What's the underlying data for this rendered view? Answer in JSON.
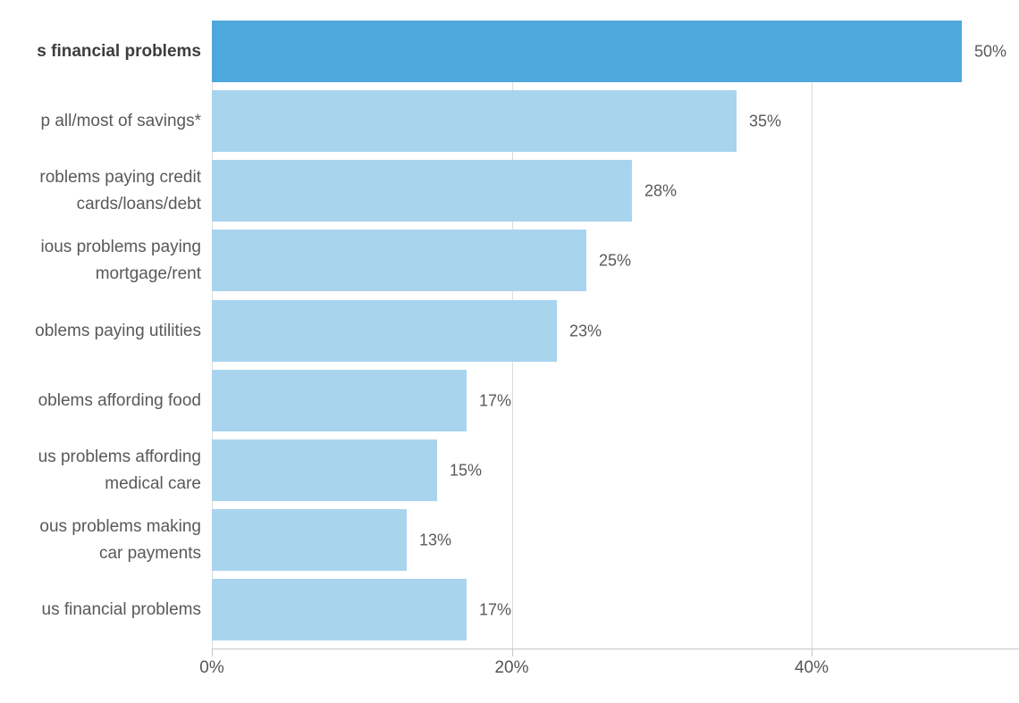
{
  "chart_data": {
    "type": "bar",
    "orientation": "horizontal",
    "title": "",
    "xlabel": "",
    "ylabel": "",
    "grid": true,
    "legend": false,
    "xlim": [
      0,
      53.8
    ],
    "categories": [
      "s financial problems",
      "p all/most of savings*",
      "roblems paying credit cards/loans/debt",
      "ious problems paying mortgage/rent",
      "oblems paying utilities",
      "oblems affording food",
      "us problems affording medical care",
      "ous problems making car payments",
      "us financial problems"
    ],
    "label_lines": [
      [
        "s financial problems"
      ],
      [
        "p all/most of savings*"
      ],
      [
        "roblems paying credit",
        "cards/loans/debt"
      ],
      [
        "ious problems paying",
        "mortgage/rent"
      ],
      [
        "oblems paying utilities"
      ],
      [
        "oblems affording food"
      ],
      [
        "us problems affording",
        "medical care"
      ],
      [
        "ous problems making",
        "car payments"
      ],
      [
        "us financial problems"
      ]
    ],
    "values": [
      50,
      35,
      28,
      25,
      23,
      17,
      15,
      13,
      17
    ],
    "value_labels": [
      "50%",
      "35%",
      "28%",
      "25%",
      "23%",
      "17%",
      "15%",
      "13%",
      "17%"
    ],
    "emphasized_row_index": 0,
    "x_ticks": [
      {
        "value": 0,
        "label": "0%"
      },
      {
        "value": 20,
        "label": "20%"
      },
      {
        "value": 40,
        "label": "40%"
      }
    ],
    "colors": {
      "bar_emphasis": "#4FA8DC",
      "bar_default": "#A9D4EE",
      "category_text": "#595959",
      "category_text_bold": "#3D3D3D",
      "value_text": "#595959",
      "axis_text": "#555555",
      "gridline": "#DCDCDC",
      "axis_line": "#C6C6C6",
      "background": "#FFFFFF"
    }
  }
}
